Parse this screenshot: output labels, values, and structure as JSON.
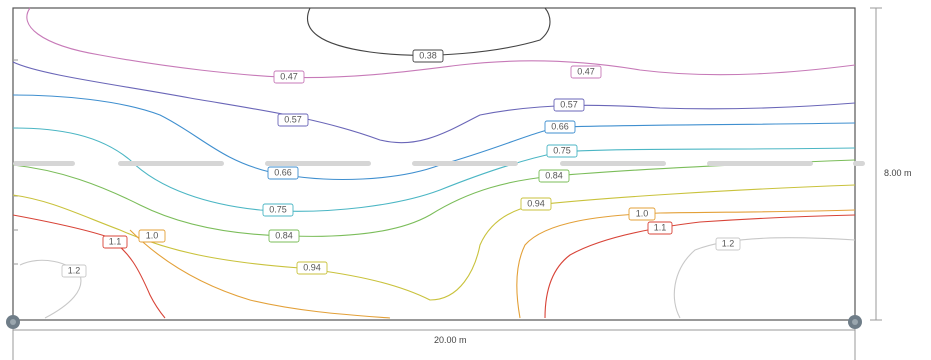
{
  "dimensions": {
    "width_label": "20.00 m",
    "height_label": "8.00 m"
  },
  "colors": {
    "frame": "#555555",
    "shelf": "#d6d6d6",
    "support": "#6f7d88",
    "dimension_line": "#9a9a9a"
  },
  "contours": [
    {
      "label": "0.38",
      "color": "#444444"
    },
    {
      "label": "0.47",
      "color": "#c77ab8"
    },
    {
      "label": "0.57",
      "color": "#6a66b8"
    },
    {
      "label": "0.66",
      "color": "#3f8fcf"
    },
    {
      "label": "0.75",
      "color": "#4bb6c4"
    },
    {
      "label": "0.84",
      "color": "#7bbd5a"
    },
    {
      "label": "0.94",
      "color": "#c9c23c"
    },
    {
      "label": "1.0",
      "color": "#e3a038"
    },
    {
      "label": "1.1",
      "color": "#d84438"
    },
    {
      "label": "1.2",
      "color": "#c8c8c8"
    }
  ],
  "labels": [
    {
      "contour": 0,
      "text": "0.38"
    },
    {
      "contour": 1,
      "text": "0.47"
    },
    {
      "contour": 1,
      "text": "0.47"
    },
    {
      "contour": 2,
      "text": "0.57"
    },
    {
      "contour": 2,
      "text": "0.57"
    },
    {
      "contour": 3,
      "text": "0.66"
    },
    {
      "contour": 3,
      "text": "0.66"
    },
    {
      "contour": 4,
      "text": "0.75"
    },
    {
      "contour": 4,
      "text": "0.75"
    },
    {
      "contour": 5,
      "text": "0.84"
    },
    {
      "contour": 5,
      "text": "0.84"
    },
    {
      "contour": 6,
      "text": "0.94"
    },
    {
      "contour": 6,
      "text": "0.94"
    },
    {
      "contour": 7,
      "text": "1.0"
    },
    {
      "contour": 7,
      "text": "1.0"
    },
    {
      "contour": 8,
      "text": "1.1"
    },
    {
      "contour": 8,
      "text": "1.1"
    },
    {
      "contour": 9,
      "text": "1.2"
    },
    {
      "contour": 9,
      "text": "1.2"
    }
  ]
}
